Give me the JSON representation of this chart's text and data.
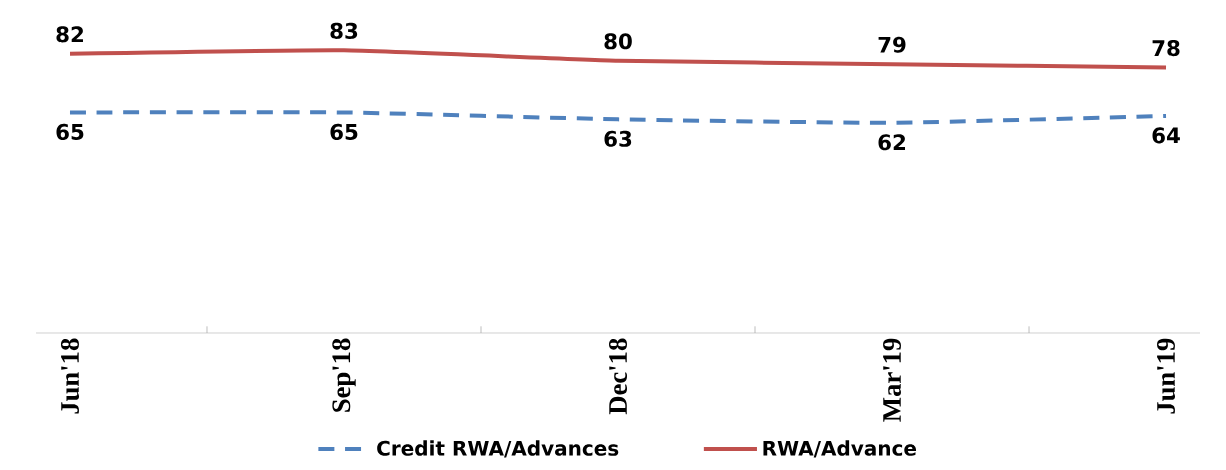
{
  "chart_data": {
    "type": "line",
    "categories": [
      "Jun'18",
      "Sep'18",
      "Dec'18",
      "Mar'19",
      "Jun'19"
    ],
    "series": [
      {
        "name": "Credit RWA/Advances",
        "color": "#4f81bd",
        "line_style": "dashed",
        "values": [
          65,
          65,
          63,
          62,
          64
        ]
      },
      {
        "name": "RWA/Advance",
        "color": "#c0504d",
        "line_style": "solid",
        "values": [
          82,
          83,
          80,
          79,
          78
        ]
      }
    ],
    "data_labels": true,
    "legend": "bottom",
    "grid": false,
    "marker": "none"
  }
}
